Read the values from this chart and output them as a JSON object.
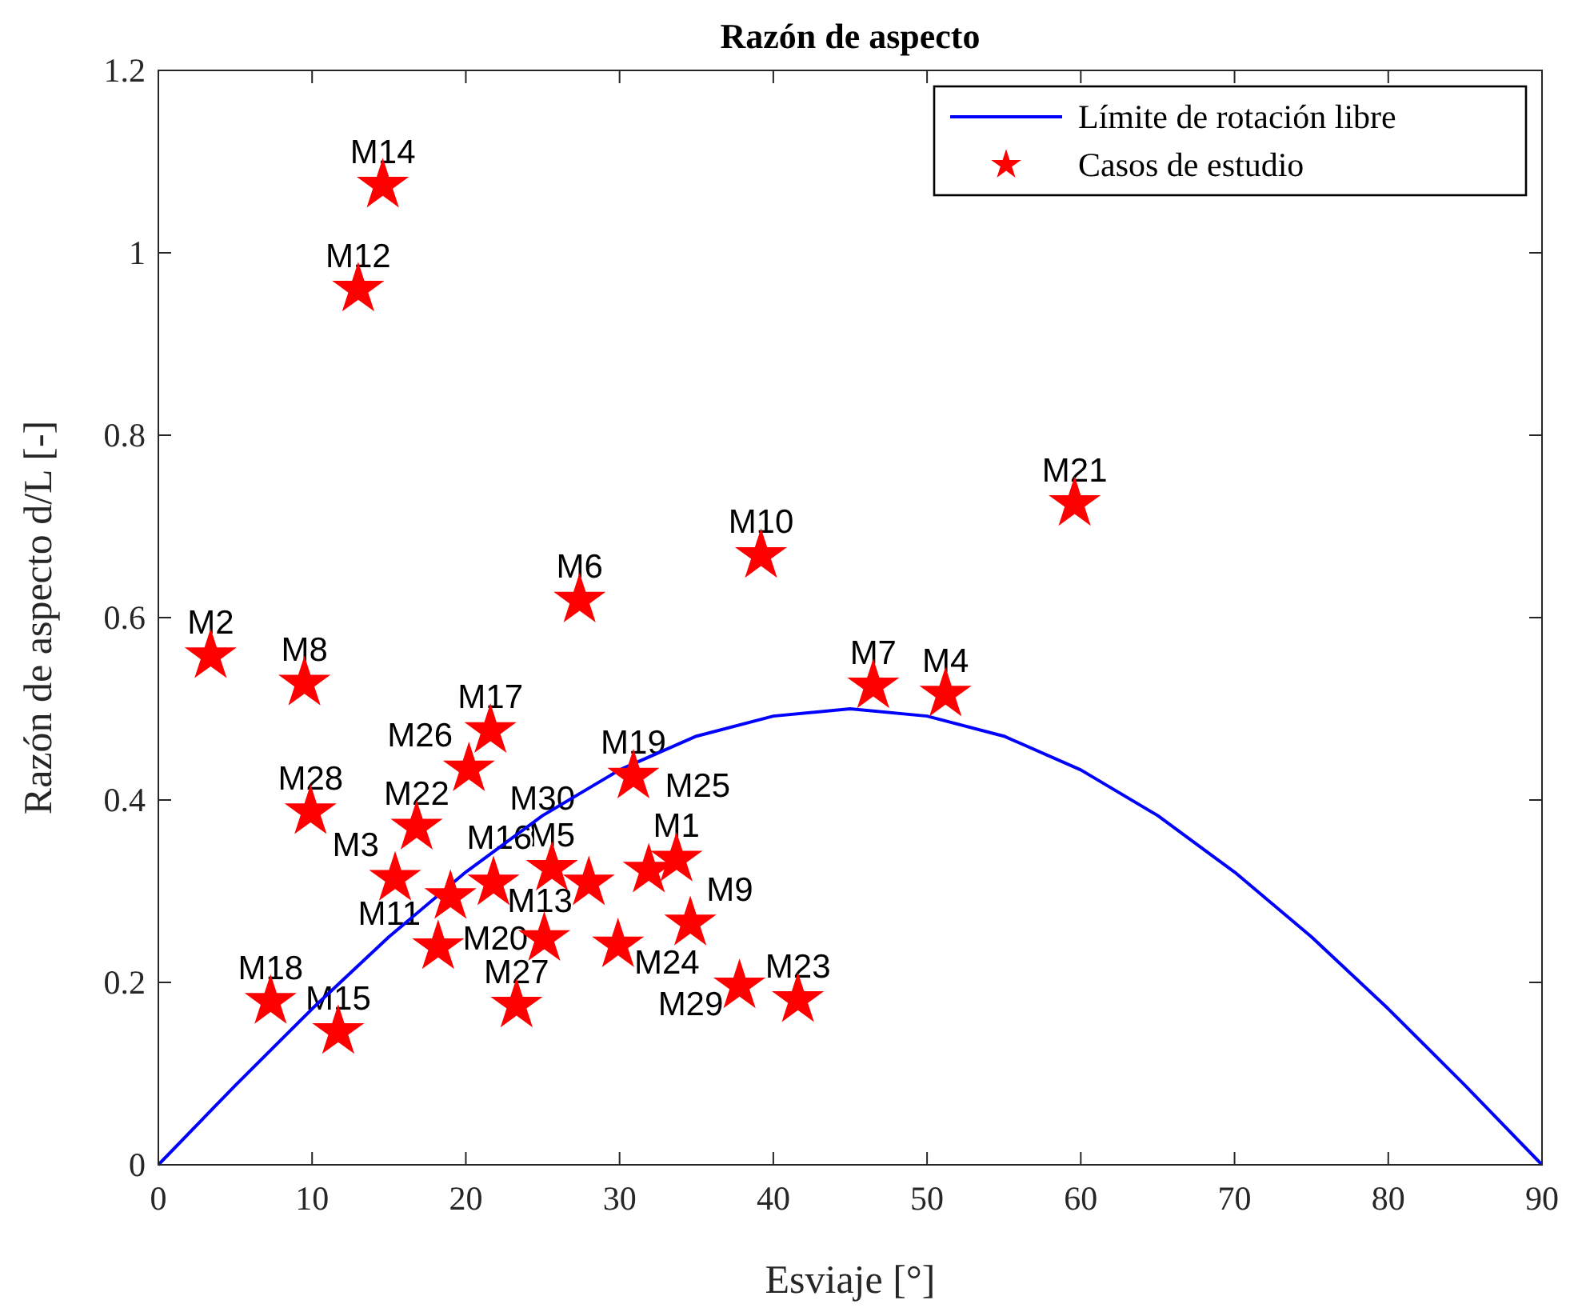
{
  "chart_data": {
    "type": "scatter",
    "title": "Razón de aspecto",
    "xlabel": "Esviaje [°]",
    "ylabel": "Razón de aspecto d/L [-]",
    "xlim": [
      0,
      90
    ],
    "xticks": [
      0,
      10,
      20,
      30,
      40,
      50,
      60,
      70,
      80,
      90
    ],
    "ylim": [
      0,
      1.2
    ],
    "yticks": [
      0,
      0.2,
      0.4,
      0.6,
      0.8,
      1,
      1.2
    ],
    "grid": false,
    "legend": "top right",
    "series": [
      {
        "name": "Límite de rotación libre",
        "type": "line",
        "color": "#0000ff",
        "marker": "none",
        "line_style": "solid",
        "x": [
          0,
          5,
          10,
          15,
          20,
          25,
          30,
          35,
          40,
          45,
          50,
          55,
          60,
          65,
          70,
          75,
          80,
          85,
          90
        ],
        "values": [
          0,
          0.087,
          0.171,
          0.25,
          0.321,
          0.383,
          0.433,
          0.47,
          0.492,
          0.5,
          0.492,
          0.47,
          0.433,
          0.383,
          0.321,
          0.25,
          0.171,
          0.087,
          0
        ]
      },
      {
        "name": "Casos de estudio",
        "type": "scatter",
        "color": "#ff0000",
        "marker": "star",
        "x": [
          33.7,
          3.4,
          15.4,
          51.2,
          25.6,
          27.4,
          46.5,
          9.5,
          34.6,
          39.2,
          18.2,
          13.0,
          28.0,
          14.6,
          11.7,
          19.0,
          21.6,
          7.3,
          30.9,
          25.1,
          59.6,
          16.8,
          41.6,
          29.9,
          31.9,
          20.2,
          23.3,
          9.9,
          37.8,
          21.8
        ],
        "values": [
          0.335,
          0.558,
          0.314,
          0.516,
          0.325,
          0.619,
          0.525,
          0.528,
          0.265,
          0.668,
          0.239,
          0.96,
          0.309,
          1.074,
          0.146,
          0.294,
          0.476,
          0.179,
          0.426,
          0.248,
          0.725,
          0.37,
          0.181,
          0.241,
          0.323,
          0.434,
          0.175,
          0.387,
          0.196,
          0.309
        ]
      }
    ],
    "annotations": [
      {
        "text": "M1",
        "x": 33.7,
        "y": 0.335
      },
      {
        "text": "M2",
        "x": 3.4,
        "y": 0.558
      },
      {
        "text": "M3",
        "x": 15.4,
        "y": 0.314
      },
      {
        "text": "M4",
        "x": 51.2,
        "y": 0.516
      },
      {
        "text": "M5",
        "x": 25.6,
        "y": 0.325
      },
      {
        "text": "M6",
        "x": 27.4,
        "y": 0.619
      },
      {
        "text": "M7",
        "x": 46.5,
        "y": 0.525
      },
      {
        "text": "M8",
        "x": 9.5,
        "y": 0.528
      },
      {
        "text": "M9",
        "x": 34.6,
        "y": 0.265
      },
      {
        "text": "M10",
        "x": 39.2,
        "y": 0.668
      },
      {
        "text": "M11",
        "x": 18.2,
        "y": 0.239
      },
      {
        "text": "M12",
        "x": 13.0,
        "y": 0.96
      },
      {
        "text": "M13",
        "x": 28.0,
        "y": 0.309
      },
      {
        "text": "M14",
        "x": 14.6,
        "y": 1.074
      },
      {
        "text": "M15",
        "x": 11.7,
        "y": 0.146
      },
      {
        "text": "M16",
        "x": 19.0,
        "y": 0.294
      },
      {
        "text": "M17",
        "x": 21.6,
        "y": 0.476
      },
      {
        "text": "M18",
        "x": 7.3,
        "y": 0.179
      },
      {
        "text": "M19",
        "x": 30.9,
        "y": 0.426
      },
      {
        "text": "M20",
        "x": 25.1,
        "y": 0.248
      },
      {
        "text": "M21",
        "x": 59.6,
        "y": 0.725
      },
      {
        "text": "M22",
        "x": 16.8,
        "y": 0.37
      },
      {
        "text": "M23",
        "x": 41.6,
        "y": 0.181
      },
      {
        "text": "M24",
        "x": 29.9,
        "y": 0.241
      },
      {
        "text": "M25",
        "x": 31.9,
        "y": 0.323
      },
      {
        "text": "M26",
        "x": 20.2,
        "y": 0.434
      },
      {
        "text": "M27",
        "x": 23.3,
        "y": 0.175
      },
      {
        "text": "M28",
        "x": 9.9,
        "y": 0.387
      },
      {
        "text": "M29",
        "x": 37.8,
        "y": 0.196
      },
      {
        "text": "M30",
        "x": 21.8,
        "y": 0.309
      }
    ]
  }
}
